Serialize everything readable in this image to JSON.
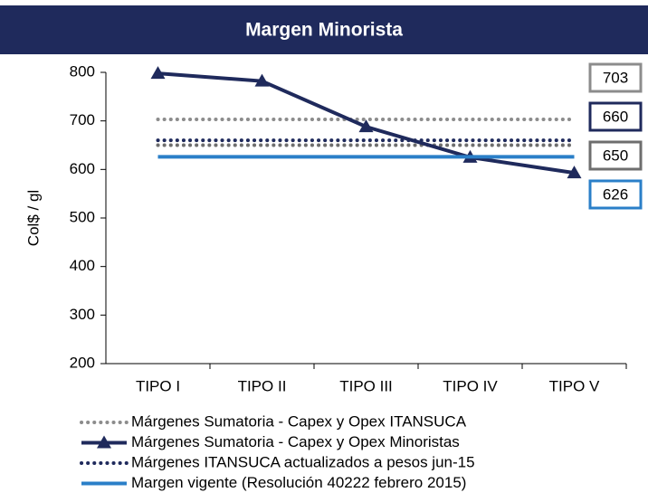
{
  "chart_data": {
    "type": "line",
    "title": "Margen Minorista",
    "y_label": "Col$ / gl",
    "categories": [
      "TIPO I",
      "TIPO II",
      "TIPO III",
      "TIPO IV",
      "TIPO V"
    ],
    "ylim": [
      200,
      800
    ],
    "yticks": [
      200,
      300,
      400,
      500,
      600,
      700,
      800
    ],
    "series": [
      {
        "name": "Márgenes Sumatoria - Capex y Opex ITANSUCA",
        "color": "#8c8c8c",
        "style": "dotted",
        "values": [
          703,
          703,
          703,
          703,
          703
        ]
      },
      {
        "name": "Márgenes Sumatoria - Capex y Opex Minoristas",
        "color": "#1f2a5c",
        "style": "triangle",
        "values": [
          798,
          782,
          688,
          625,
          593
        ]
      },
      {
        "name": "Márgenes ITANSUCA actualizados a pesos jun-15",
        "color": "#1f2a5c",
        "style": "dotted",
        "values": [
          660,
          660,
          660,
          660,
          660
        ]
      },
      {
        "name": "Margen vigente (Resolución 40222 febrero 2015)",
        "color": "#2a7fc8",
        "style": "solid",
        "values": [
          626,
          626,
          626,
          626,
          626
        ]
      },
      {
        "color": "#6e6e6e",
        "style": "dotted",
        "values": [
          650,
          650,
          650,
          650,
          650
        ]
      }
    ]
  }
}
